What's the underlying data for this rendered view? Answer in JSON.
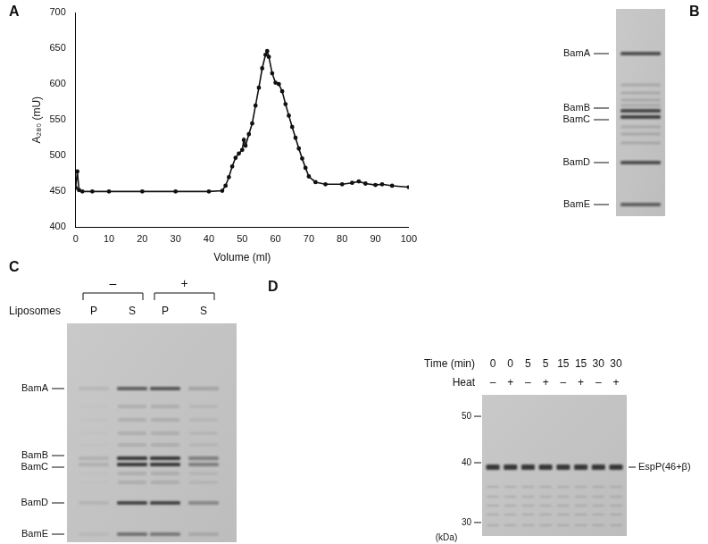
{
  "chart_data": {
    "type": "line",
    "title": "A",
    "x_label": "Volume (ml)",
    "y_label": "A₂₈₀ (mU)",
    "x": [
      0,
      0.5,
      1,
      2,
      5,
      10,
      20,
      30,
      40,
      44,
      45,
      46,
      47,
      48,
      49,
      50,
      50.5,
      51,
      52,
      53,
      54,
      55,
      56,
      57,
      57.5,
      58,
      59,
      60,
      61,
      62,
      63,
      64,
      65,
      66,
      67,
      68,
      69,
      70,
      72,
      75,
      80,
      83,
      85,
      87,
      90,
      92,
      95,
      100
    ],
    "values": [
      455,
      478,
      452,
      450,
      450,
      450,
      450,
      450,
      450,
      451,
      458,
      470,
      485,
      497,
      503,
      508,
      522,
      514,
      530,
      545,
      570,
      595,
      622,
      641,
      646,
      638,
      615,
      602,
      600,
      590,
      572,
      556,
      540,
      525,
      510,
      496,
      483,
      471,
      463,
      460,
      460,
      462,
      464,
      461,
      459,
      460,
      458,
      456
    ],
    "color": "#111111",
    "marker": "circle",
    "grid": false,
    "xlim": [
      0,
      100
    ],
    "xticks": [
      0,
      10,
      20,
      30,
      40,
      50,
      60,
      70,
      80,
      90,
      100
    ],
    "ylim": [
      400,
      700
    ],
    "yticks": [
      400,
      450,
      500,
      550,
      600,
      650,
      700
    ]
  },
  "gels": {
    "B": {
      "bands": [
        "BamA",
        "BamB",
        "BamC",
        "BamD",
        "BamE"
      ]
    },
    "C": {
      "header": "Liposomes",
      "groups": [
        {
          "label": "–",
          "lanes": [
            "P",
            "S"
          ]
        },
        {
          "label": "+",
          "lanes": [
            "P",
            "S"
          ]
        }
      ],
      "bands": [
        "BamA",
        "BamB",
        "BamC",
        "BamD",
        "BamE"
      ]
    },
    "D": {
      "rows": [
        {
          "label": "Time (min)",
          "values": [
            0,
            0,
            5,
            5,
            15,
            15,
            30,
            30
          ]
        },
        {
          "label": "Heat",
          "values": [
            "–",
            "+",
            "–",
            "+",
            "–",
            "+",
            "–",
            "+"
          ]
        }
      ],
      "markers": [
        50,
        40,
        30
      ],
      "marker_unit": "(kDa)",
      "band": "EspP(46+β)"
    }
  }
}
